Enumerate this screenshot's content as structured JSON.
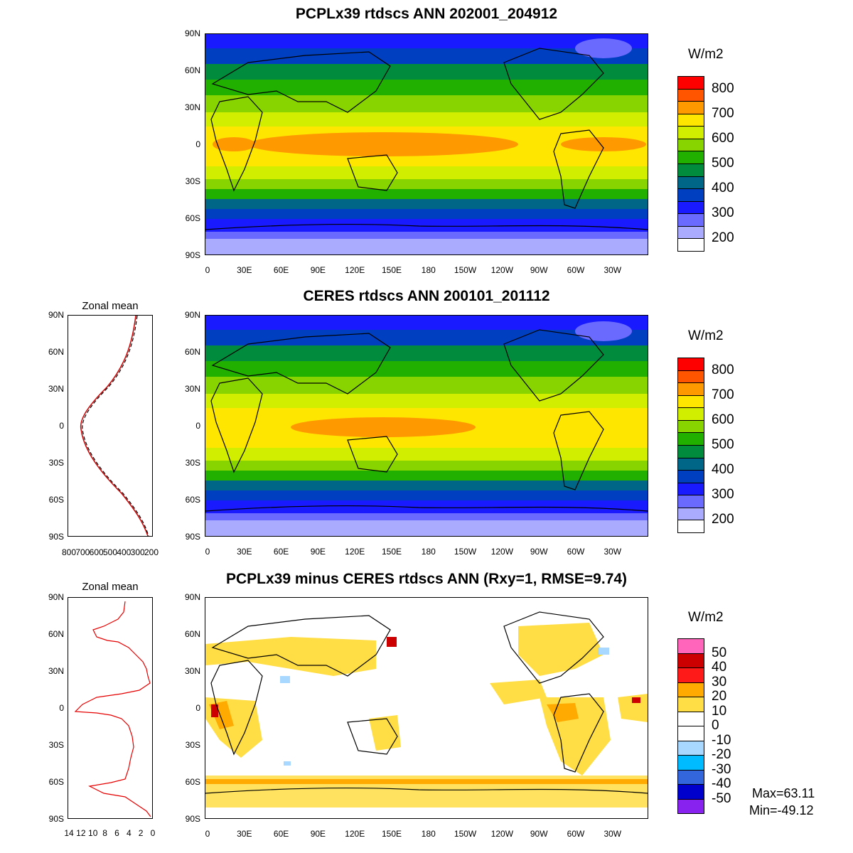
{
  "panels": [
    {
      "title": "PCPLx39 rtdscs ANN 202001_204912",
      "units": "W/m2",
      "colorbar_levels": [
        "800",
        "700",
        "600",
        "500",
        "400",
        "300",
        "200"
      ],
      "colorbar_colors": [
        "#ff0000",
        "#ff5500",
        "#ff9900",
        "#ffe600",
        "#d2ee00",
        "#88d400",
        "#22b000",
        "#008c3c",
        "#006688",
        "#0040c0",
        "#1a1aff",
        "#6a6aff",
        "#aaaaff",
        "#ffffff"
      ]
    },
    {
      "title": "CERES rtdscs ANN 200101_201112",
      "units": "W/m2",
      "colorbar_levels": [
        "800",
        "700",
        "600",
        "500",
        "400",
        "300",
        "200"
      ],
      "colorbar_colors": [
        "#ff0000",
        "#ff5500",
        "#ff9900",
        "#ffe600",
        "#d2ee00",
        "#88d400",
        "#22b000",
        "#008c3c",
        "#006688",
        "#0040c0",
        "#1a1aff",
        "#6a6aff",
        "#aaaaff",
        "#ffffff"
      ]
    },
    {
      "title": "PCPLx39 minus CERES rtdscs ANN (Rxy=1, RMSE=9.74)",
      "units": "W/m2",
      "colorbar_levels": [
        "50",
        "40",
        "30",
        "20",
        "10",
        "0",
        "-10",
        "-20",
        "-30",
        "-40",
        "-50"
      ],
      "colorbar_colors": [
        "#ff66bb",
        "#cc0000",
        "#ff1a1a",
        "#ffaa00",
        "#ffdd44",
        "#ffffff",
        "#ffffff",
        "#a8d8ff",
        "#00bbff",
        "#3366dd",
        "#0000cc",
        "#8822ee"
      ],
      "max_label": "Max=63.11",
      "min_label": "Min=-49.12"
    }
  ],
  "lat_ticks": [
    "90N",
    "60N",
    "30N",
    "0",
    "30S",
    "60S",
    "90S"
  ],
  "lon_ticks": [
    "0",
    "30E",
    "60E",
    "90E",
    "120E",
    "150E",
    "180",
    "150W",
    "120W",
    "90W",
    "60W",
    "30W"
  ],
  "zonal": [
    {
      "title": "Zonal mean",
      "x_ticks": [
        "800",
        "700",
        "600",
        "500",
        "400",
        "300",
        "200"
      ]
    },
    {
      "title": "Zonal mean",
      "x_ticks": [
        "14",
        "12",
        "10",
        "8",
        "6",
        "4",
        "2",
        "0"
      ]
    }
  ]
}
